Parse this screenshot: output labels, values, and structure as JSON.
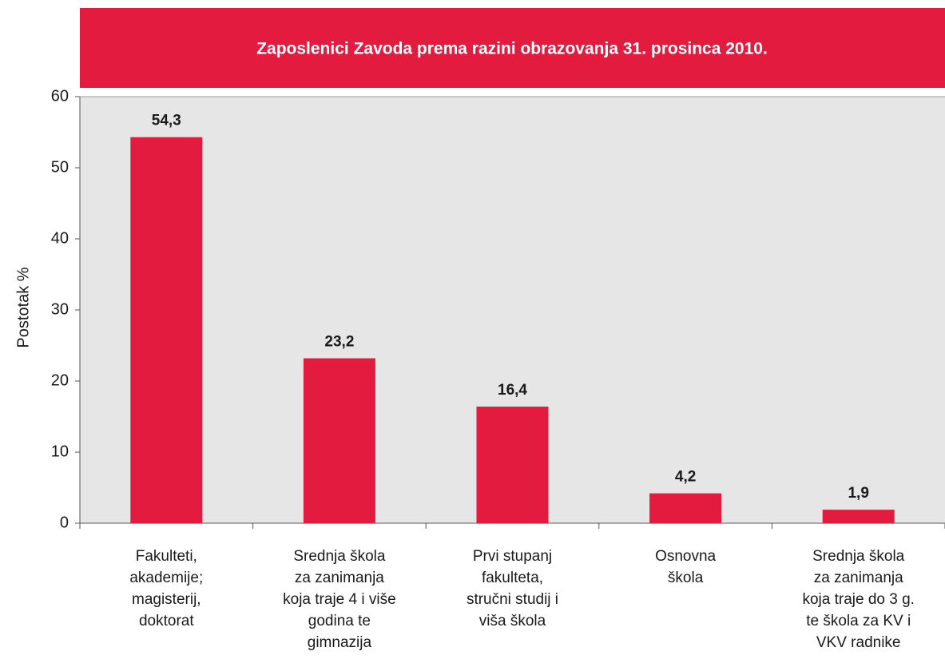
{
  "chart_data": {
    "type": "bar",
    "title": "Zaposlenici Zavoda prema razini obrazovanja 31. prosinca 2010.",
    "y_label": "Postotak  %",
    "categories": [
      "Fakulteti,\nakademije;\nmagisterij,\ndoktorat",
      "Srednja škola\nza zanimanja\nkoja traje 4 i više\ngodina te\ngimnazija",
      "Prvi stupanj\nfakulteta,\nstručni studij i\nviša škola",
      "Osnovna\nškola",
      "Srednja škola\nza zanimanja\nkoja traje do 3 g.\nte škola za KV i\nVKV radnike"
    ],
    "values": [
      54.3,
      23.2,
      16.4,
      4.2,
      1.9
    ],
    "value_labels": [
      "54,3",
      "23,2",
      "16,4",
      "4,2",
      "1,9"
    ],
    "color": "#e31b3f",
    "ylim": [
      0,
      60
    ],
    "yticks": [
      0,
      10,
      20,
      30,
      40,
      50,
      60
    ]
  }
}
